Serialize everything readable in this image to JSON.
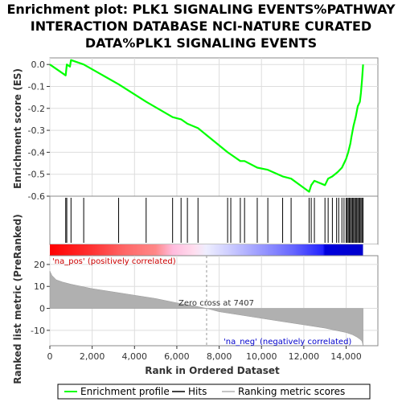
{
  "chart_data": {
    "type": "line",
    "title_lines": [
      "Enrichment plot: PLK1 SIGNALING EVENTS%PATHWAY",
      "INTERACTION DATABASE NCI-NATURE CURATED",
      "DATA%PLK1 SIGNALING EVENTS"
    ],
    "es_panel": {
      "ylabel": "Enrichment score (ES)",
      "ylim": [
        -0.6,
        0.03
      ],
      "yticks": [
        "0.0",
        "-0.1",
        "-0.2",
        "-0.3",
        "-0.4",
        "-0.5",
        "-0.6"
      ],
      "ytick_values": [
        0.0,
        -0.1,
        -0.2,
        -0.3,
        -0.4,
        -0.5,
        -0.6
      ],
      "color": "#00ff00",
      "series": {
        "name": "Enrichment profile",
        "x": [
          0,
          750,
          800,
          950,
          1000,
          1600,
          3250,
          4550,
          5800,
          6200,
          6500,
          7000,
          8400,
          8550,
          9000,
          9200,
          9800,
          10300,
          11000,
          11400,
          12250,
          12350,
          12500,
          13000,
          13150,
          13350,
          13600,
          13800,
          14000,
          14100,
          14200,
          14250,
          14350,
          14450,
          14550,
          14650,
          14700,
          14750,
          14800
        ],
        "y": [
          0.0,
          -0.05,
          0.0,
          -0.01,
          0.02,
          0.0,
          -0.09,
          -0.17,
          -0.24,
          -0.25,
          -0.27,
          -0.29,
          -0.4,
          -0.41,
          -0.44,
          -0.44,
          -0.47,
          -0.48,
          -0.51,
          -0.52,
          -0.58,
          -0.55,
          -0.53,
          -0.55,
          -0.52,
          -0.51,
          -0.49,
          -0.47,
          -0.43,
          -0.4,
          -0.36,
          -0.33,
          -0.28,
          -0.24,
          -0.19,
          -0.17,
          -0.13,
          -0.07,
          0.0
        ]
      }
    },
    "hits": [
      750,
      800,
      1000,
      1600,
      3250,
      4550,
      5800,
      6200,
      6500,
      7000,
      8400,
      8550,
      9000,
      9200,
      9800,
      10300,
      11000,
      11400,
      12250,
      12350,
      12500,
      13000,
      13150,
      13350,
      13550,
      13650,
      13800,
      13900,
      14000,
      14050,
      14100,
      14150,
      14200,
      14250,
      14300,
      14350,
      14400,
      14450,
      14500,
      14550,
      14600,
      14650,
      14700,
      14750,
      14800
    ],
    "rank_panel": {
      "ylabel": "Ranked list metric (PreRanked)",
      "ylim": [
        -17,
        24
      ],
      "yticks": [
        "20",
        "10",
        "0",
        "-10"
      ],
      "ytick_values": [
        20,
        10,
        0,
        -10
      ],
      "metric_x": [
        0,
        100,
        300,
        600,
        1000,
        2000,
        3000,
        4000,
        5000,
        6000,
        7000,
        7407,
        8000,
        9000,
        10000,
        11000,
        12000,
        13000,
        13500,
        14000,
        14300,
        14500,
        14650,
        14750,
        14800
      ],
      "metric_y": [
        17.0,
        15.0,
        13.0,
        12.0,
        11.0,
        9.0,
        7.5,
        6.0,
        4.5,
        2.5,
        0.8,
        0.0,
        -1.5,
        -3.0,
        -4.5,
        -6.0,
        -7.5,
        -9.0,
        -10.0,
        -11.0,
        -12.0,
        -13.0,
        -14.0,
        -15.0,
        -17.0
      ],
      "pos_label": "'na_pos' (positively correlated)",
      "neg_label": "'na_neg' (negatively correlated)",
      "zero_cross_label": "Zero cross at 7407",
      "zero_cross": 7407,
      "fill_color": "#b0b0b0"
    },
    "x_axis": {
      "xlabel": "Rank in Ordered Dataset",
      "xlim": [
        0,
        15500
      ],
      "xticks": [
        "0",
        "2,000",
        "4,000",
        "6,000",
        "8,000",
        "10,000",
        "12,000",
        "14,000"
      ],
      "xtick_values": [
        0,
        2000,
        4000,
        6000,
        8000,
        10000,
        12000,
        14000
      ]
    },
    "heat_bar": {
      "stops": [
        {
          "rank": 0,
          "color": "#ff0000"
        },
        {
          "rank": 2000,
          "color": "#ff3333"
        },
        {
          "rank": 3500,
          "color": "#ff6666"
        },
        {
          "rank": 5000,
          "color": "#ff8888"
        },
        {
          "rank": 5800,
          "color": "#ffbbdd"
        },
        {
          "rank": 6800,
          "color": "#ffddee"
        },
        {
          "rank": 7400,
          "color": "#eeeeff"
        },
        {
          "rank": 8500,
          "color": "#ccccff"
        },
        {
          "rank": 10000,
          "color": "#9999ff"
        },
        {
          "rank": 11500,
          "color": "#6666ff"
        },
        {
          "rank": 12900,
          "color": "#2222ff"
        },
        {
          "rank": 13000,
          "color": "#0000dd"
        },
        {
          "rank": 14800,
          "color": "#0000cc"
        }
      ]
    },
    "legend": [
      {
        "label": "Enrichment profile",
        "color": "#00ff00"
      },
      {
        "label": "Hits",
        "color": "#000000"
      },
      {
        "label": "Ranking metric scores",
        "color": "#b0b0b0"
      }
    ]
  }
}
